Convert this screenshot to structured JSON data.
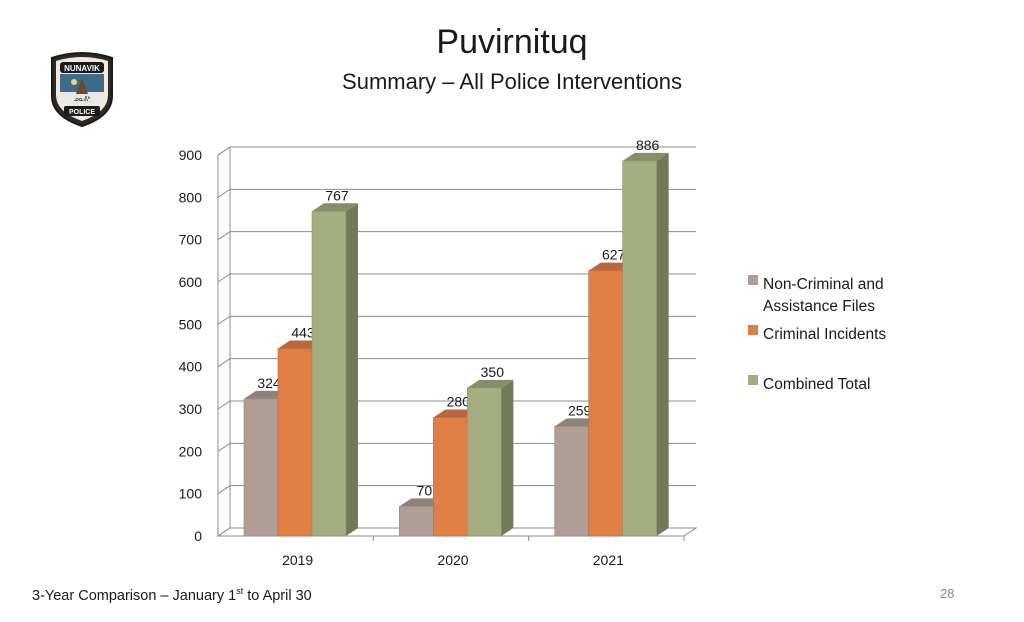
{
  "title": "Puvirnituq",
  "subtitle": "Summary – All Police Interventions",
  "logo": {
    "top_text": "NUNAVIK",
    "bottom_text": "POLICE",
    "middle_text": "ᓄᓇᕕᒃ"
  },
  "footer": {
    "prefix": "3-Year Comparison – January 1",
    "superscript": "st",
    "suffix": " to April 30"
  },
  "page_number": "28",
  "colors": {
    "non_criminal": "#b09e96",
    "criminal": "#e07f45",
    "combined": "#a3ad7f"
  },
  "chart_data": {
    "type": "bar",
    "style": "3d-clustered-column",
    "categories": [
      "2019",
      "2020",
      "2021"
    ],
    "series": [
      {
        "name": "Non-Criminal and Assistance Files",
        "values": [
          324,
          70,
          259
        ]
      },
      {
        "name": "Criminal Incidents",
        "values": [
          443,
          280,
          627
        ]
      },
      {
        "name": "Combined Total",
        "values": [
          767,
          350,
          886
        ]
      }
    ],
    "legend_lines": [
      [
        "Non-Criminal and",
        "Assistance Files"
      ],
      [
        "Criminal Incidents"
      ],
      [
        "Combined Total"
      ]
    ],
    "y_ticks": [
      "0",
      "100",
      "200",
      "300",
      "400",
      "500",
      "600",
      "700",
      "800",
      "900"
    ],
    "ylim": [
      0,
      900
    ],
    "grid": true,
    "legend_position": "right",
    "xlabel": "",
    "ylabel": ""
  }
}
